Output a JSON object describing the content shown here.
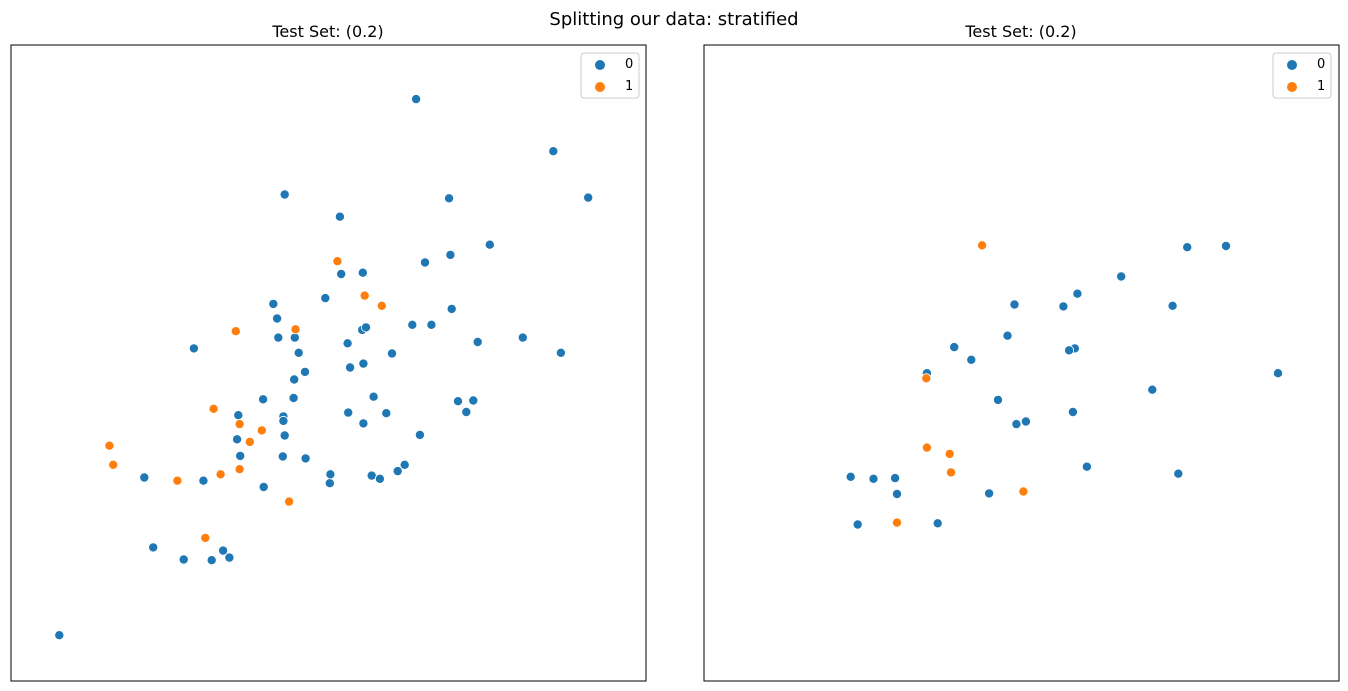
{
  "figure": {
    "suptitle": "Splitting our data: stratified"
  },
  "colors": {
    "0": "#1f77b4",
    "1": "#ff7f0e"
  },
  "chart_data": [
    {
      "type": "scatter",
      "title": "Test Set: (0.2)",
      "xlabel": "",
      "ylabel": "",
      "xlim": [
        0,
        100
      ],
      "ylim": [
        0,
        100
      ],
      "ticks_visible": false,
      "grid": false,
      "legend": {
        "placement": "top-right",
        "entries": [
          "0",
          "1"
        ]
      },
      "series": [
        {
          "name": "0",
          "color": "#1f77b4",
          "points": [
            [
              63.8,
              91.5
            ],
            [
              85.4,
              83.3
            ],
            [
              90.9,
              76.0
            ],
            [
              43.1,
              76.5
            ],
            [
              51.8,
              73.0
            ],
            [
              69.0,
              75.9
            ],
            [
              75.4,
              68.6
            ],
            [
              69.2,
              67.0
            ],
            [
              65.2,
              65.8
            ],
            [
              52.0,
              64.0
            ],
            [
              55.4,
              64.2
            ],
            [
              49.5,
              60.2
            ],
            [
              41.3,
              59.3
            ],
            [
              69.4,
              58.5
            ],
            [
              41.9,
              57.0
            ],
            [
              66.2,
              56.0
            ],
            [
              63.2,
              56.0
            ],
            [
              55.3,
              55.2
            ],
            [
              55.9,
              55.6
            ],
            [
              42.1,
              54.0
            ],
            [
              44.7,
              54.0
            ],
            [
              80.6,
              54.0
            ],
            [
              73.5,
              53.3
            ],
            [
              86.6,
              51.6
            ],
            [
              53.0,
              53.1
            ],
            [
              28.8,
              52.3
            ],
            [
              45.3,
              51.6
            ],
            [
              60.0,
              51.5
            ],
            [
              55.5,
              49.9
            ],
            [
              46.3,
              48.6
            ],
            [
              53.4,
              49.3
            ],
            [
              44.6,
              47.4
            ],
            [
              72.8,
              44.1
            ],
            [
              39.7,
              44.3
            ],
            [
              44.5,
              44.5
            ],
            [
              57.1,
              44.7
            ],
            [
              70.4,
              44.0
            ],
            [
              53.1,
              42.2
            ],
            [
              59.1,
              42.1
            ],
            [
              71.7,
              42.3
            ],
            [
              35.8,
              41.8
            ],
            [
              42.9,
              41.6
            ],
            [
              42.9,
              40.9
            ],
            [
              55.5,
              40.5
            ],
            [
              43.1,
              38.6
            ],
            [
              64.4,
              38.7
            ],
            [
              35.6,
              38.0
            ],
            [
              62.0,
              34.0
            ],
            [
              42.8,
              35.3
            ],
            [
              36.1,
              35.4
            ],
            [
              46.4,
              35.0
            ],
            [
              60.9,
              33.0
            ],
            [
              56.8,
              32.3
            ],
            [
              21.0,
              32.0
            ],
            [
              58.1,
              31.8
            ],
            [
              30.3,
              31.5
            ],
            [
              50.2,
              31.1
            ],
            [
              39.8,
              30.5
            ],
            [
              22.4,
              21.0
            ],
            [
              33.4,
              20.5
            ],
            [
              34.4,
              19.4
            ],
            [
              31.6,
              19.0
            ],
            [
              27.2,
              19.1
            ],
            [
              7.6,
              7.2
            ],
            [
              50.3,
              32.5
            ]
          ]
        },
        {
          "name": "1",
          "color": "#ff7f0e",
          "points": [
            [
              51.4,
              66.0
            ],
            [
              55.7,
              60.6
            ],
            [
              58.4,
              59.0
            ],
            [
              35.4,
              55.0
            ],
            [
              44.8,
              55.3
            ],
            [
              31.9,
              42.8
            ],
            [
              36.0,
              40.4
            ],
            [
              39.5,
              39.4
            ],
            [
              15.5,
              37.0
            ],
            [
              37.6,
              37.6
            ],
            [
              16.1,
              34.0
            ],
            [
              36.0,
              33.3
            ],
            [
              33.0,
              32.5
            ],
            [
              26.2,
              31.5
            ],
            [
              43.8,
              28.2
            ],
            [
              30.6,
              22.5
            ]
          ]
        }
      ]
    },
    {
      "type": "scatter",
      "title": "Test Set: (0.2)",
      "xlabel": "",
      "ylabel": "",
      "xlim": [
        0,
        100
      ],
      "ylim": [
        0,
        100
      ],
      "ticks_visible": false,
      "grid": false,
      "legend": {
        "placement": "top-right",
        "entries": [
          "0",
          "1"
        ]
      },
      "series": [
        {
          "name": "0",
          "color": "#1f77b4",
          "points": [
            [
              76.1,
              68.2
            ],
            [
              82.2,
              68.4
            ],
            [
              65.7,
              63.6
            ],
            [
              58.8,
              60.9
            ],
            [
              48.9,
              59.2
            ],
            [
              73.8,
              59.0
            ],
            [
              56.6,
              58.9
            ],
            [
              47.8,
              54.3
            ],
            [
              39.4,
              52.5
            ],
            [
              58.4,
              52.3
            ],
            [
              57.5,
              52.0
            ],
            [
              42.1,
              50.5
            ],
            [
              35.1,
              48.4
            ],
            [
              90.4,
              48.4
            ],
            [
              70.6,
              45.8
            ],
            [
              46.3,
              44.2
            ],
            [
              58.1,
              42.3
            ],
            [
              50.7,
              40.8
            ],
            [
              49.2,
              40.4
            ],
            [
              60.3,
              33.7
            ],
            [
              74.7,
              32.6
            ],
            [
              23.1,
              32.1
            ],
            [
              26.7,
              31.8
            ],
            [
              30.1,
              31.9
            ],
            [
              30.4,
              29.4
            ],
            [
              44.9,
              29.5
            ],
            [
              24.2,
              24.6
            ],
            [
              36.8,
              24.8
            ]
          ]
        },
        {
          "name": "1",
          "color": "#ff7f0e",
          "points": [
            [
              43.8,
              68.5
            ],
            [
              35.0,
              47.6
            ],
            [
              35.1,
              36.7
            ],
            [
              38.7,
              35.7
            ],
            [
              38.9,
              32.8
            ],
            [
              50.3,
              29.8
            ],
            [
              30.4,
              24.9
            ]
          ]
        }
      ]
    }
  ]
}
